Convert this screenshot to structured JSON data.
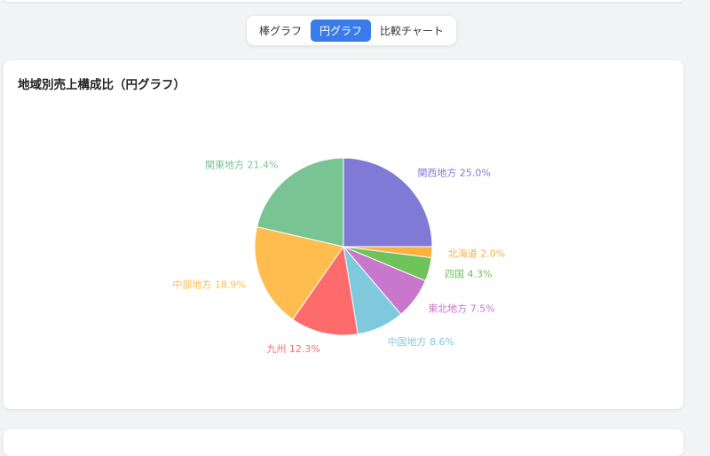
{
  "tabs": [
    {
      "label": "棒グラフ",
      "active": false
    },
    {
      "label": "円グラフ",
      "active": true
    },
    {
      "label": "比較チャート",
      "active": false
    }
  ],
  "card": {
    "title": "地域別売上構成比（円グラフ）"
  },
  "colors": {
    "accent": "#3a7bea"
  },
  "chart_data": {
    "type": "pie",
    "title": "地域別売上構成比（円グラフ）",
    "slices": [
      {
        "name": "関西地方",
        "value": 25.0,
        "label": "関西地方 25.0%",
        "color": "#7f7ad6"
      },
      {
        "name": "北海道",
        "value": 2.0,
        "label": "北海道 2.0%",
        "color": "#fbb040"
      },
      {
        "name": "四国",
        "value": 4.3,
        "label": "四国 4.3%",
        "color": "#6fc35a"
      },
      {
        "name": "東北地方",
        "value": 7.5,
        "label": "東北地方 7.5%",
        "color": "#c877cc"
      },
      {
        "name": "中国地方",
        "value": 8.6,
        "label": "中国地方 8.6%",
        "color": "#7ecadc"
      },
      {
        "name": "九州",
        "value": 12.3,
        "label": "九州 12.3%",
        "color": "#fd6b6b"
      },
      {
        "name": "中部地方",
        "value": 18.9,
        "label": "中部地方 18.9%",
        "color": "#ffbd4f"
      },
      {
        "name": "関東地方",
        "value": 21.4,
        "label": "関東地方 21.4%",
        "color": "#78c492"
      }
    ],
    "start": "top",
    "direction": "clockwise"
  }
}
